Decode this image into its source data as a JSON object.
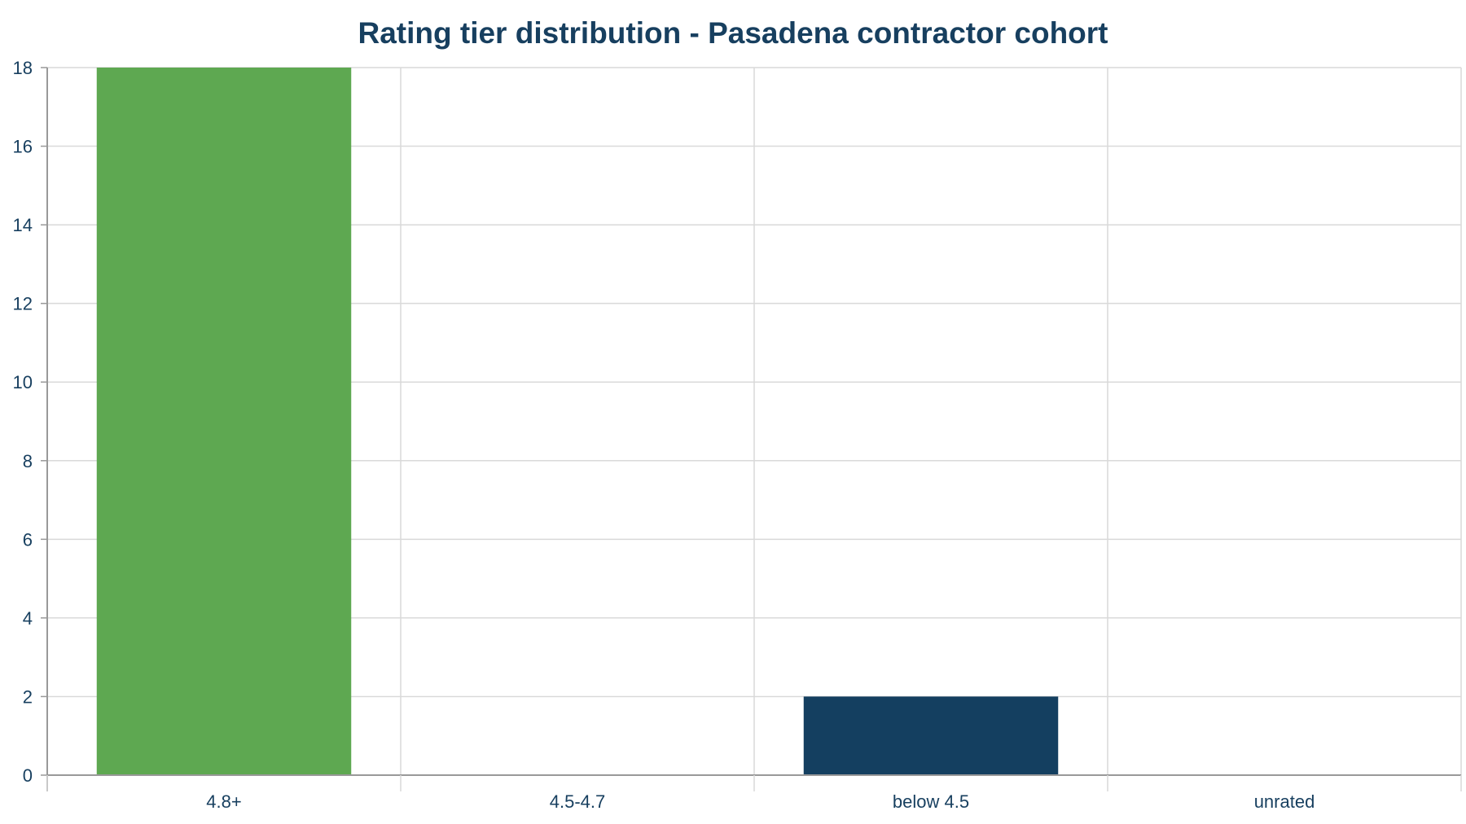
{
  "chart_data": {
    "type": "bar",
    "title": "Rating tier distribution - Pasadena contractor cohort",
    "xlabel": "",
    "ylabel": "",
    "categories": [
      "4.8+",
      "4.5-4.7",
      "below 4.5",
      "unrated"
    ],
    "values": [
      18,
      0,
      2,
      0
    ],
    "bar_colors": [
      "#5ea851",
      "#5ea851",
      "#143f60",
      "#143f60"
    ],
    "ylim": [
      0,
      18
    ],
    "yticks": [
      0,
      2,
      4,
      6,
      8,
      10,
      12,
      14,
      16,
      18
    ],
    "grid": true,
    "legend": "none"
  },
  "colors": {
    "title": "#173f5f",
    "grid": "#d9d9d9",
    "axis": "#999999"
  }
}
